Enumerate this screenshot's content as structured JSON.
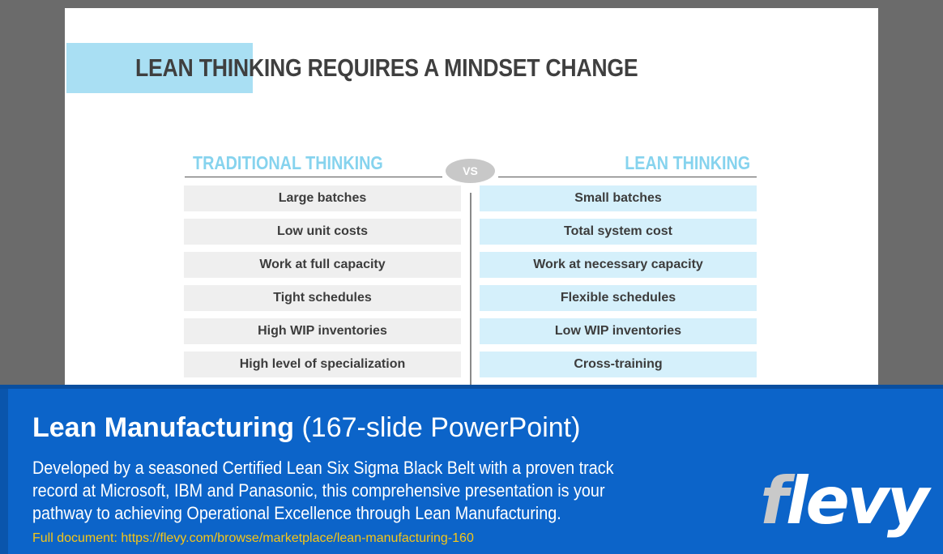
{
  "slide": {
    "title": "LEAN THINKING REQUIRES A MINDSET CHANGE",
    "left_heading": "TRADITIONAL THINKING",
    "right_heading": "LEAN THINKING",
    "vs_label": "VS",
    "traditional": [
      "Large batches",
      "Low unit costs",
      "Work at full capacity",
      "Tight schedules",
      "High WIP inventories",
      "High level of specialization"
    ],
    "lean": [
      "Small batches",
      "Total system cost",
      "Work at necessary capacity",
      "Flexible schedules",
      "Low WIP inventories",
      "Cross-training"
    ]
  },
  "banner": {
    "title_main": "Lean Manufacturing",
    "title_sub": "(167-slide PowerPoint)",
    "description": "Developed by a seasoned Certified Lean Six Sigma Black Belt with a proven track record at Microsoft, IBM and Panasonic, this comprehensive presentation is your pathway to achieving Operational Excellence through Lean Manufacturing.",
    "link": "Full document: https://flevy.com/browse/marketplace/lean-manufacturing-160",
    "logo_first": "f",
    "logo_rest": "levy"
  },
  "colors": {
    "accent": "#a9dff3",
    "heading": "#86d3ee",
    "banner": "#0c64c9",
    "link": "#f5c518"
  }
}
